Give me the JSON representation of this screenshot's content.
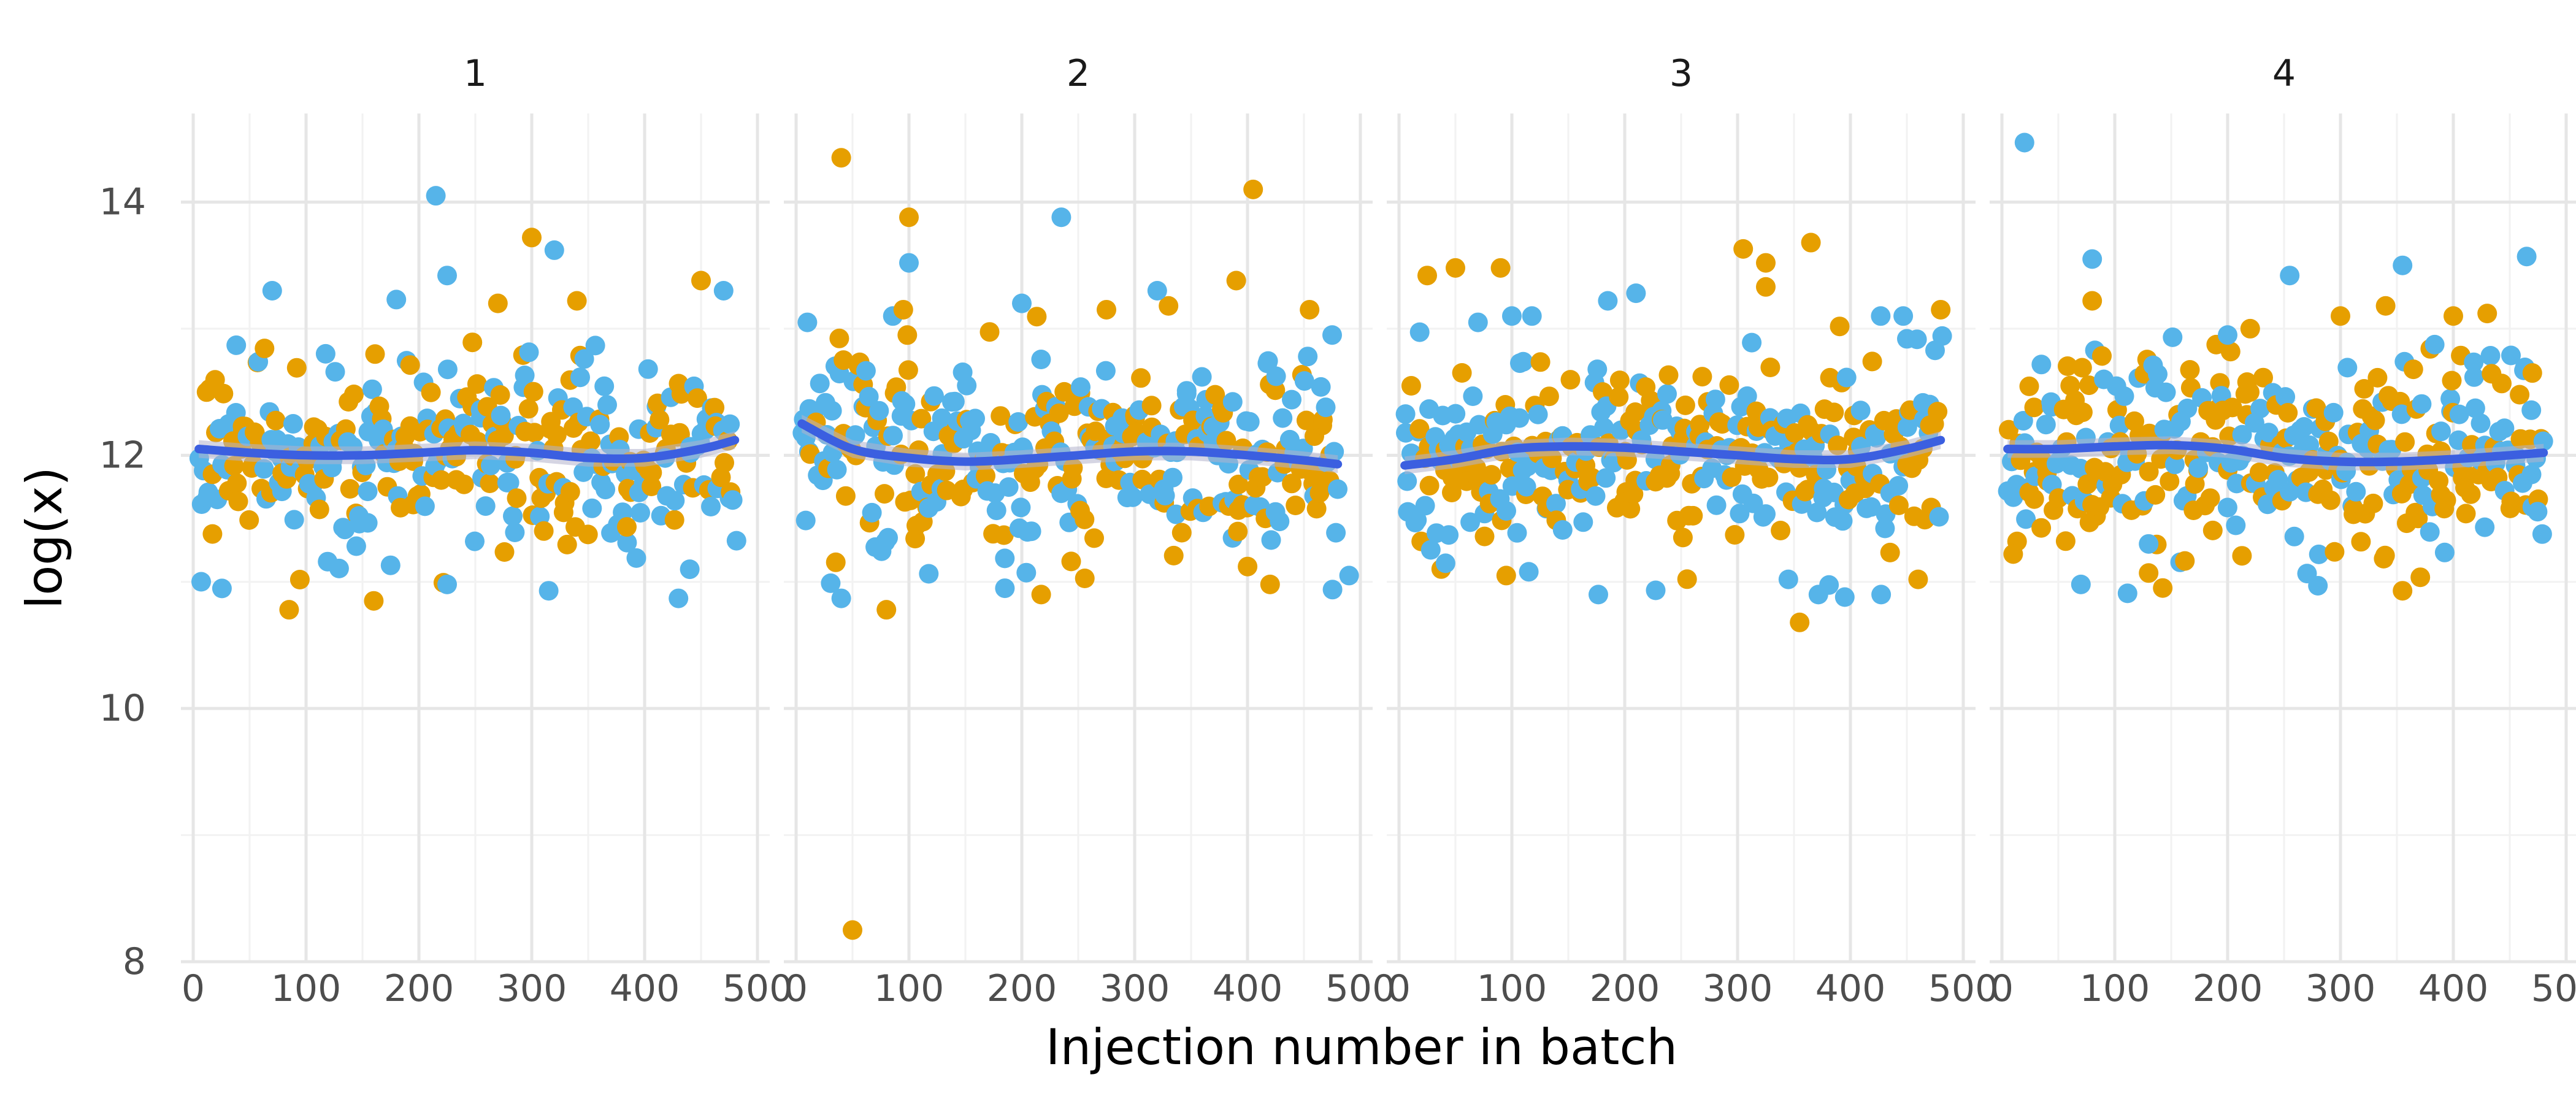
{
  "chart_data": {
    "type": "scatter",
    "title": "",
    "xlabel": "Injection number in batch",
    "ylabel": "log(x)",
    "xlim": [
      0,
      500
    ],
    "ylim": [
      8,
      14.7
    ],
    "x_ticks": [
      "0",
      "100",
      "200",
      "300",
      "400",
      "500"
    ],
    "y_ticks": [
      "8",
      "10",
      "12",
      "14"
    ],
    "y_tick_values": [
      8,
      10,
      12,
      14
    ],
    "x_tick_values": [
      0,
      100,
      200,
      300,
      400,
      500
    ],
    "grid": true,
    "legend": "none",
    "colors": {
      "series_a": "#E69F00",
      "series_b": "#56B4E9",
      "trend": "#3B5FE0",
      "trend_band": "#B3B3CC"
    },
    "panels": [
      {
        "label": "1",
        "trend": [
          [
            5,
            12.05
          ],
          [
            50,
            12.02
          ],
          [
            100,
            12.0
          ],
          [
            150,
            12.0
          ],
          [
            200,
            12.02
          ],
          [
            250,
            12.04
          ],
          [
            300,
            12.02
          ],
          [
            350,
            11.98
          ],
          [
            400,
            11.98
          ],
          [
            450,
            12.05
          ],
          [
            480,
            12.12
          ]
        ],
        "outliers_a": [
          [
            85,
            10.78
          ],
          [
            160,
            10.85
          ],
          [
            300,
            13.72
          ],
          [
            340,
            13.22
          ],
          [
            450,
            13.38
          ],
          [
            270,
            13.2
          ]
        ],
        "outliers_b": [
          [
            215,
            14.05
          ],
          [
            70,
            13.3
          ],
          [
            180,
            13.23
          ],
          [
            225,
            13.42
          ],
          [
            320,
            13.62
          ],
          [
            470,
            13.3
          ],
          [
            225,
            10.98
          ],
          [
            315,
            10.93
          ],
          [
            430,
            10.87
          ],
          [
            440,
            11.1
          ]
        ]
      },
      {
        "label": "2",
        "trend": [
          [
            5,
            12.25
          ],
          [
            50,
            12.05
          ],
          [
            100,
            11.98
          ],
          [
            150,
            11.95
          ],
          [
            200,
            11.97
          ],
          [
            250,
            12.0
          ],
          [
            300,
            12.03
          ],
          [
            350,
            12.03
          ],
          [
            400,
            12.0
          ],
          [
            450,
            11.96
          ],
          [
            480,
            11.93
          ]
        ],
        "outliers_a": [
          [
            40,
            14.35
          ],
          [
            50,
            8.25
          ],
          [
            100,
            13.88
          ],
          [
            405,
            14.1
          ],
          [
            95,
            13.15
          ],
          [
            330,
            13.18
          ],
          [
            390,
            13.38
          ],
          [
            275,
            13.15
          ],
          [
            80,
            10.78
          ],
          [
            420,
            10.98
          ],
          [
            455,
            13.15
          ]
        ],
        "outliers_b": [
          [
            10,
            13.05
          ],
          [
            235,
            13.88
          ],
          [
            100,
            13.52
          ],
          [
            200,
            13.2
          ],
          [
            320,
            13.3
          ],
          [
            40,
            10.87
          ],
          [
            185,
            10.95
          ],
          [
            475,
            12.95
          ],
          [
            490,
            11.05
          ]
        ]
      },
      {
        "label": "3",
        "trend": [
          [
            5,
            11.92
          ],
          [
            50,
            11.97
          ],
          [
            100,
            12.05
          ],
          [
            150,
            12.07
          ],
          [
            200,
            12.06
          ],
          [
            250,
            12.03
          ],
          [
            300,
            12.0
          ],
          [
            350,
            11.97
          ],
          [
            400,
            11.97
          ],
          [
            450,
            12.05
          ],
          [
            480,
            12.12
          ]
        ],
        "outliers_a": [
          [
            25,
            13.42
          ],
          [
            50,
            13.48
          ],
          [
            90,
            13.48
          ],
          [
            305,
            13.63
          ],
          [
            325,
            13.52
          ],
          [
            365,
            13.68
          ],
          [
            325,
            13.33
          ],
          [
            95,
            11.05
          ],
          [
            355,
            10.68
          ],
          [
            460,
            11.02
          ],
          [
            480,
            13.15
          ]
        ],
        "outliers_b": [
          [
            70,
            13.05
          ],
          [
            100,
            13.1
          ],
          [
            185,
            13.22
          ],
          [
            210,
            13.28
          ],
          [
            345,
            11.02
          ],
          [
            395,
            10.88
          ],
          [
            115,
            11.08
          ],
          [
            450,
            12.92
          ]
        ]
      },
      {
        "label": "4",
        "trend": [
          [
            5,
            12.05
          ],
          [
            50,
            12.05
          ],
          [
            100,
            12.07
          ],
          [
            150,
            12.08
          ],
          [
            200,
            12.05
          ],
          [
            250,
            11.98
          ],
          [
            300,
            11.95
          ],
          [
            350,
            11.95
          ],
          [
            400,
            11.97
          ],
          [
            450,
            12.0
          ],
          [
            480,
            12.02
          ]
        ],
        "outliers_a": [
          [
            80,
            13.22
          ],
          [
            220,
            13.0
          ],
          [
            300,
            13.1
          ],
          [
            340,
            13.18
          ],
          [
            400,
            13.1
          ],
          [
            430,
            13.12
          ],
          [
            130,
            11.07
          ],
          [
            355,
            10.93
          ],
          [
            10,
            11.22
          ],
          [
            470,
            12.65
          ]
        ],
        "outliers_b": [
          [
            20,
            14.47
          ],
          [
            80,
            13.55
          ],
          [
            255,
            13.42
          ],
          [
            355,
            13.5
          ],
          [
            465,
            13.57
          ],
          [
            70,
            10.98
          ],
          [
            280,
            10.97
          ],
          [
            130,
            11.3
          ],
          [
            200,
            12.95
          ]
        ]
      }
    ]
  }
}
